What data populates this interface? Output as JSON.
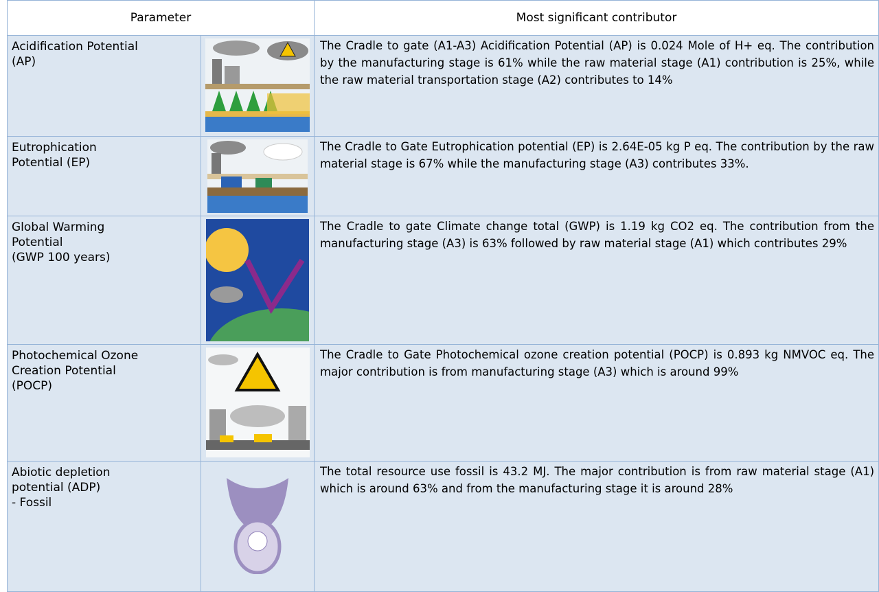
{
  "table": {
    "header": [
      "Parameter",
      "Most significant contributor"
    ],
    "rows": [
      {
        "parameter": [
          "Acidification Potential",
          "(AP)"
        ],
        "description": "The Cradle to gate (A1-A3) Acidification Potential (AP) is 0.024 Mole of H+ eq. The contribution by the manufacturing stage is 61% while the raw material stage (A1) contribution is 25%, while the raw material transportation stage (A2) contributes to 14%"
      },
      {
        "parameter": [
          "Eutrophication",
          "Potential (EP)"
        ],
        "description": "The Cradle to Gate Eutrophication potential (EP) is 2.64E-05 kg P eq. The contribution by the raw material stage is 67% while the manufacturing stage (A3) contributes 33%."
      },
      {
        "parameter": [
          "Global Warming",
          "Potential",
          "(GWP 100 years)"
        ],
        "description": "The Cradle to gate Climate change total (GWP) is 1.19 kg CO2 eq. The contribution from the manufacturing stage (A3) is 63% followed by raw material stage (A1) which contributes 29%"
      },
      {
        "parameter": [
          "Photochemical Ozone",
          "Creation Potential",
          "(POCP)"
        ],
        "description": "The Cradle to Gate Photochemical ozone creation potential (POCP) is 0.893 kg NMVOC eq. The major contribution is from manufacturing stage (A3) which is around 99%"
      },
      {
        "parameter": [
          "Abiotic depletion",
          "potential (ADP)",
          "- Fossil"
        ],
        "description": "The total resource use fossil is 43.2 MJ. The major contribution is from raw material stage (A1) which is around 63% and from the manufacturing stage it is around 28%"
      }
    ]
  }
}
